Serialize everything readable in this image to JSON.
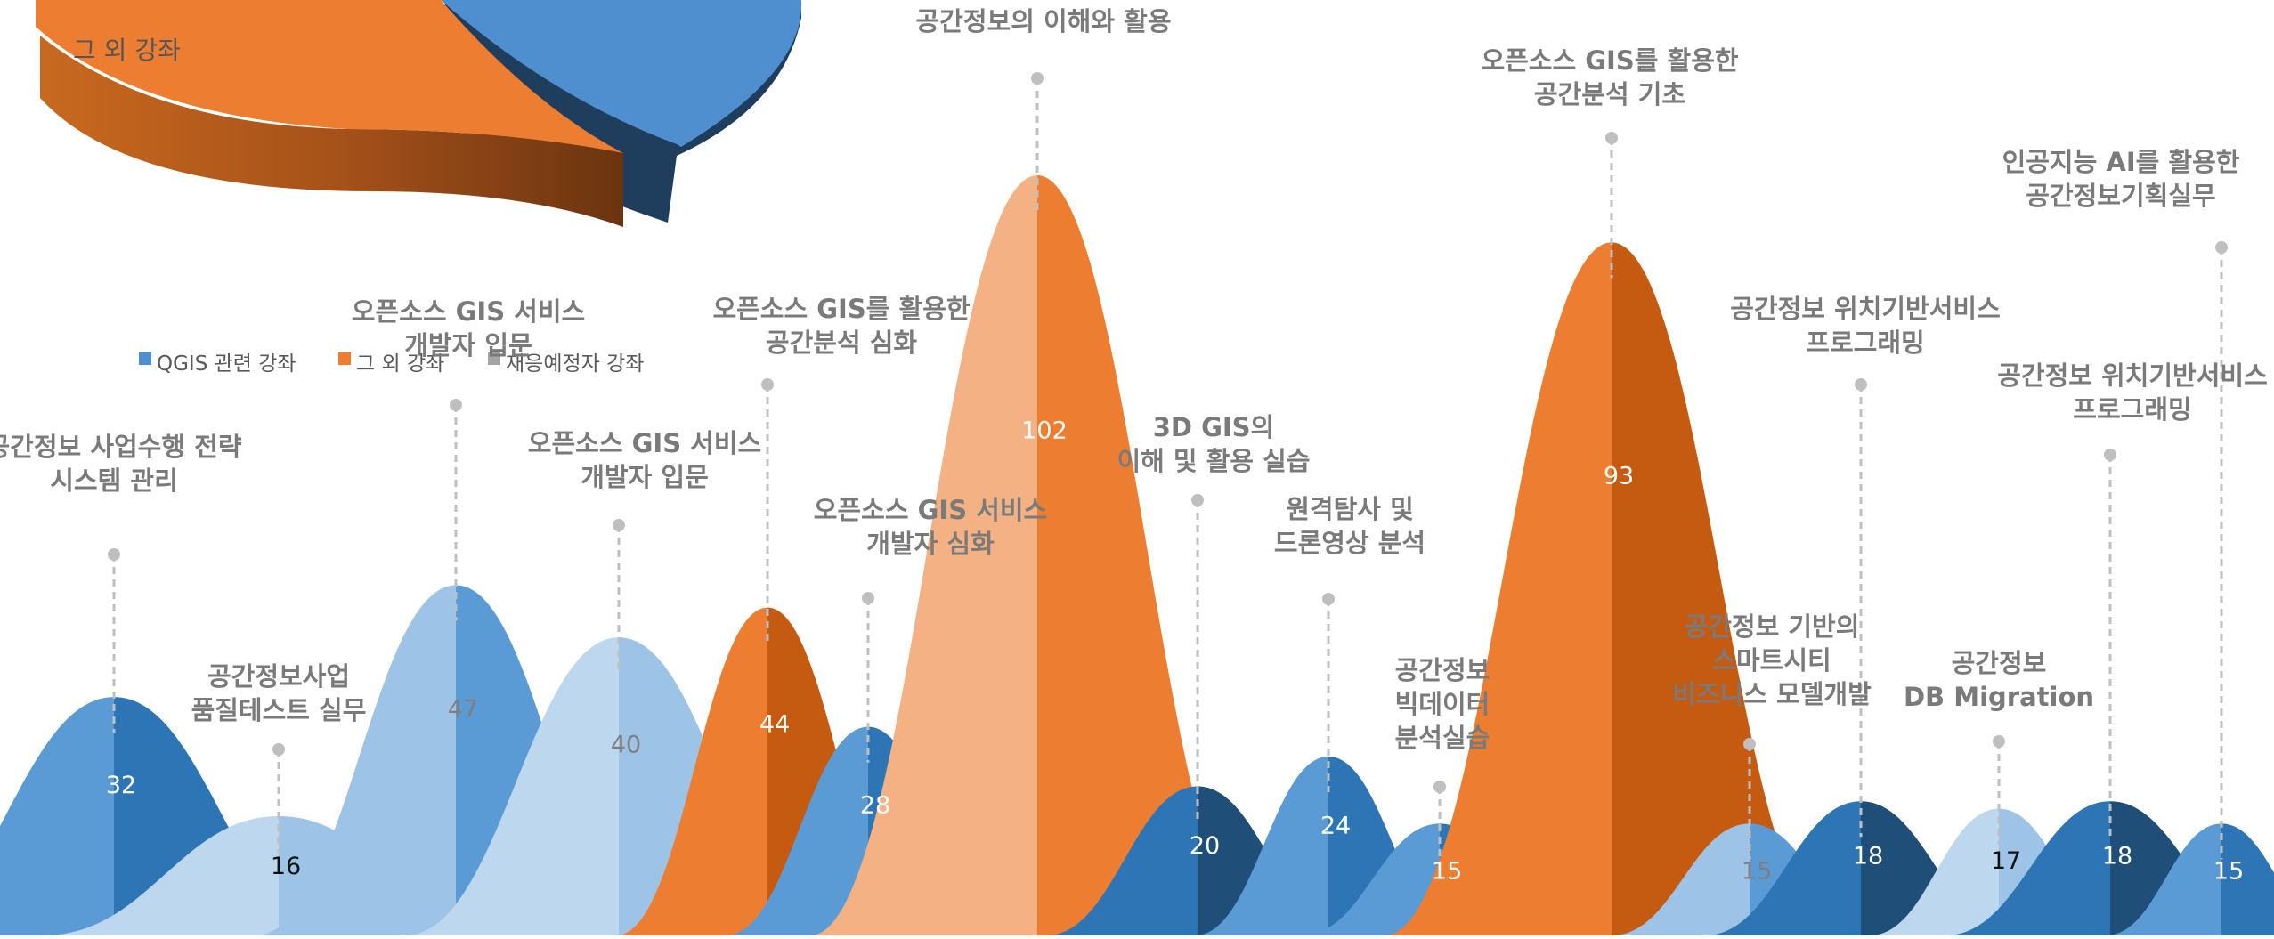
{
  "chart_data": [
    {
      "type": "pie",
      "title": "",
      "slices": [
        {
          "name": "QGIS 관련 강좌",
          "color": "#4f8fd0"
        },
        {
          "name": "그 외 강좌",
          "color": "#ed7d31"
        },
        {
          "name": "재응예정자 강좌",
          "color": "#a5a5a5"
        }
      ],
      "slice_label": "그 외 강좌",
      "legend": {
        "placement": "top-left"
      }
    },
    {
      "type": "bar",
      "shape": "bell",
      "title": "",
      "xlabel": "",
      "ylabel": "",
      "ylim": [
        0,
        110
      ],
      "categories": [
        {
          "lines": [
            "공간정보 사업수행 전략",
            "시스템 관리"
          ],
          "value": 32,
          "group": "QGIS 관련 강좌",
          "palette": "mid-blue"
        },
        {
          "lines": [
            "공간정보사업",
            "품질테스트 실무"
          ],
          "value": 16,
          "group": "QGIS 관련 강좌",
          "palette": "pale-blue"
        },
        {
          "lines": [
            "오픈소스 GIS 서비스",
            "개발자 입문"
          ],
          "value": 47,
          "group": "QGIS 관련 강좌",
          "palette": "light-blue"
        },
        {
          "lines": [
            "오픈소스 GIS 서비스",
            "개발자 입문"
          ],
          "value": 40,
          "group": "QGIS 관련 강좌",
          "palette": "pale-blue"
        },
        {
          "lines": [
            "오픈소스 GIS를 활용한",
            "공간분석 심화"
          ],
          "value": 44,
          "group": "그 외 강좌",
          "palette": "orange"
        },
        {
          "lines": [
            "오픈소스 GIS 서비스",
            "개발자 심화"
          ],
          "value": 28,
          "group": "QGIS 관련 강좌",
          "palette": "mid-blue"
        },
        {
          "lines": [
            "공간정보의 이해와 활용"
          ],
          "value": 102,
          "group": "그 외 강좌",
          "palette": "light-orange"
        },
        {
          "lines": [
            "3D GIS의",
            "이해 및 활용 실습"
          ],
          "value": 20,
          "group": "QGIS 관련 강좌",
          "palette": "dark-blue"
        },
        {
          "lines": [
            "원격탐사 및",
            "드론영상 분석"
          ],
          "value": 24,
          "group": "QGIS 관련 강좌",
          "palette": "mid-blue"
        },
        {
          "lines": [
            "공간정보",
            "빅데이터",
            "분석실습"
          ],
          "value": 15,
          "group": "QGIS 관련 강좌",
          "palette": "mid-blue"
        },
        {
          "lines": [
            "오픈소스 GIS를 활용한",
            "공간분석 기초"
          ],
          "value": 93,
          "group": "그 외 강좌",
          "palette": "orange"
        },
        {
          "lines": [
            "공간정보 기반의",
            "스마트시티",
            "비즈니스 모델개발"
          ],
          "value": 15,
          "group": "QGIS 관련 강좌",
          "palette": "light-blue"
        },
        {
          "lines": [
            "공간정보 위치기반서비스",
            "프로그래밍"
          ],
          "value": 18,
          "group": "QGIS 관련 강좌",
          "palette": "dark-blue"
        },
        {
          "lines": [
            "공간정보",
            "DB Migration"
          ],
          "value": 17,
          "group": "QGIS 관련 강좌",
          "palette": "pale-blue"
        },
        {
          "lines": [
            "공간정보 위치기반서비스",
            "프로그래밍"
          ],
          "value": 18,
          "group": "QGIS 관련 강좌",
          "palette": "dark-blue"
        },
        {
          "lines": [
            "인공지능 AI를 활용한",
            "공간정보기획실무"
          ],
          "value": 15,
          "group": "QGIS 관련 강좌",
          "palette": "mid-blue"
        }
      ]
    }
  ]
}
